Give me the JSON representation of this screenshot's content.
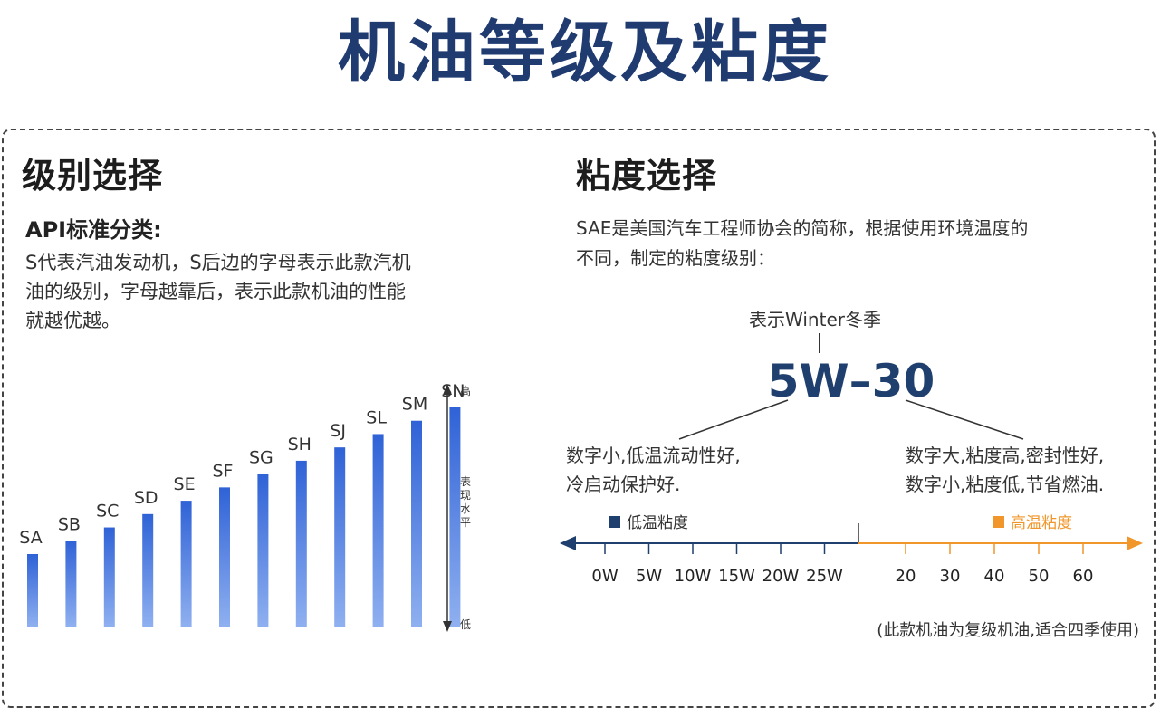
{
  "page": {
    "title": "机油等级及粘度"
  },
  "left": {
    "heading": "级别选择",
    "subheading": "API标准分类:",
    "paragraph_lines": [
      "S代表汽油发动机，S后边的字母表示此款汽机",
      "油的级别，字母越靠后，表示此款机油的性能",
      "就越优越。"
    ]
  },
  "right": {
    "heading": "粘度选择",
    "paragraph_lines": [
      "SAE是美国汽车工程师协会的简称，根据使用环境温度的",
      "不同，制定的粘度级别："
    ],
    "winter_label": "表示Winter冬季",
    "code": "5W–30",
    "left_note_lines": [
      "数字小,低温流动性好,",
      "冷启动保护好."
    ],
    "right_note_lines": [
      "数字大,粘度高,密封性好,",
      "数字小,粘度低,节省燃油."
    ],
    "legend_low": "低温粘度",
    "legend_high": "高温粘度",
    "footnote": "(此款机油为复级机油,适合四季使用)",
    "colors": {
      "low": "#1f3f6e",
      "high": "#f0962a"
    }
  },
  "chart_data": {
    "type": "bar",
    "categories": [
      "SA",
      "SB",
      "SC",
      "SD",
      "SE",
      "SF",
      "SG",
      "SH",
      "SJ",
      "SL",
      "SM",
      "SN"
    ],
    "values": [
      1,
      2,
      3,
      4,
      5,
      6,
      7,
      8,
      9,
      10,
      11,
      12
    ],
    "ylabel": "表现水平",
    "y_high_label": "高",
    "y_low_label": "低",
    "bar_color": "#2d5fd0"
  },
  "scale": {
    "low_ticks": [
      "0W",
      "5W",
      "10W",
      "15W",
      "20W",
      "25W"
    ],
    "high_ticks": [
      "20",
      "30",
      "40",
      "50",
      "60"
    ]
  }
}
